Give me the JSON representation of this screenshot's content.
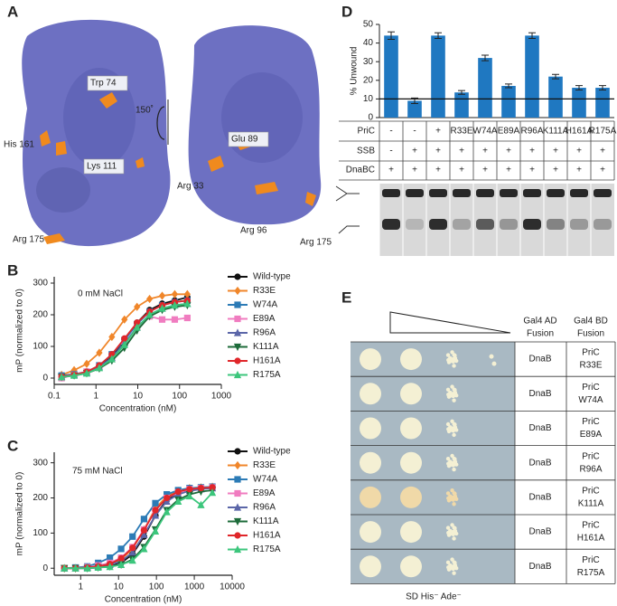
{
  "chart_data": [
    {
      "type": "line",
      "panel": "B",
      "annotation": "0 mM NaCl",
      "xlabel": "Concentration (nM)",
      "ylabel": "mP (normalized to 0)",
      "xscale": "log",
      "xlim": [
        0.1,
        1000
      ],
      "xticks": [
        0.1,
        1,
        10,
        100,
        1000
      ],
      "ylim": [
        -20,
        320
      ],
      "yticks": [
        0,
        100,
        200,
        300
      ],
      "x": [
        0.15,
        0.3,
        0.6,
        1.2,
        2.4,
        4.8,
        9.6,
        19.2,
        38.4,
        76.8,
        153.6
      ],
      "series": [
        {
          "name": "Wild-type",
          "color": "#111111",
          "marker": "circle",
          "values": [
            5,
            8,
            18,
            35,
            70,
            120,
            175,
            215,
            235,
            245,
            255
          ]
        },
        {
          "name": "R33E",
          "color": "#f0862a",
          "marker": "diamond",
          "values": [
            10,
            25,
            45,
            80,
            130,
            185,
            225,
            250,
            260,
            265,
            265
          ]
        },
        {
          "name": "W74A",
          "color": "#2c7bb6",
          "marker": "square",
          "values": [
            8,
            12,
            20,
            40,
            75,
            120,
            170,
            210,
            230,
            240,
            245
          ]
        },
        {
          "name": "E89A",
          "color": "#f07cc0",
          "marker": "square",
          "values": [
            0,
            10,
            20,
            35,
            60,
            110,
            160,
            195,
            185,
            185,
            190
          ]
        },
        {
          "name": "R96A",
          "color": "#5b66a8",
          "marker": "triangle",
          "values": [
            5,
            10,
            18,
            35,
            65,
            110,
            160,
            200,
            220,
            230,
            235
          ]
        },
        {
          "name": "K111A",
          "color": "#1d6b3a",
          "marker": "triangle-down",
          "values": [
            3,
            8,
            15,
            30,
            55,
            95,
            150,
            195,
            215,
            225,
            230
          ]
        },
        {
          "name": "H161A",
          "color": "#e0262a",
          "marker": "circle",
          "values": [
            5,
            10,
            20,
            40,
            75,
            125,
            175,
            210,
            230,
            240,
            245
          ]
        },
        {
          "name": "R175A",
          "color": "#3cc67c",
          "marker": "triangle",
          "values": [
            3,
            8,
            15,
            32,
            60,
            105,
            160,
            200,
            220,
            230,
            235
          ]
        }
      ]
    },
    {
      "type": "line",
      "panel": "C",
      "annotation": "75 mM NaCl",
      "xlabel": "Concentration (nM)",
      "ylabel": "mP (normalized to 0)",
      "xscale": "log",
      "xlim": [
        0.2,
        10000
      ],
      "xticks": [
        1,
        10,
        100,
        1000,
        10000
      ],
      "ylim": [
        -20,
        330
      ],
      "yticks": [
        0,
        100,
        200,
        300
      ],
      "x": [
        0.37,
        0.73,
        1.5,
        2.9,
        5.9,
        11.7,
        23.4,
        47,
        94,
        188,
        375,
        750,
        1500,
        3000
      ],
      "series": [
        {
          "name": "Wild-type",
          "color": "#111111",
          "marker": "circle",
          "values": [
            0,
            0,
            0,
            2,
            5,
            15,
            40,
            90,
            150,
            195,
            215,
            225,
            228,
            230
          ]
        },
        {
          "name": "R33E",
          "color": "#f0862a",
          "marker": "diamond",
          "values": [
            0,
            0,
            2,
            5,
            10,
            25,
            55,
            110,
            170,
            205,
            220,
            228,
            230,
            232
          ]
        },
        {
          "name": "W74A",
          "color": "#2c7bb6",
          "marker": "square",
          "values": [
            0,
            2,
            5,
            15,
            30,
            55,
            90,
            140,
            185,
            210,
            222,
            228,
            230,
            232
          ]
        },
        {
          "name": "E89A",
          "color": "#f07cc0",
          "marker": "square",
          "values": [
            0,
            0,
            3,
            8,
            15,
            30,
            60,
            110,
            165,
            200,
            215,
            225,
            228,
            230
          ]
        },
        {
          "name": "R96A",
          "color": "#5b66a8",
          "marker": "triangle",
          "values": [
            0,
            0,
            2,
            5,
            10,
            20,
            45,
            95,
            150,
            190,
            210,
            220,
            225,
            228
          ]
        },
        {
          "name": "K111A",
          "color": "#1d6b3a",
          "marker": "triangle-down",
          "values": [
            0,
            0,
            0,
            2,
            5,
            10,
            25,
            60,
            110,
            165,
            195,
            210,
            218,
            222
          ]
        },
        {
          "name": "H161A",
          "color": "#e0262a",
          "marker": "circle",
          "values": [
            0,
            0,
            2,
            5,
            12,
            28,
            58,
            108,
            165,
            200,
            218,
            225,
            228,
            230
          ]
        },
        {
          "name": "R175A",
          "color": "#3cc67c",
          "marker": "triangle",
          "values": [
            0,
            0,
            0,
            2,
            4,
            10,
            22,
            55,
            105,
            160,
            190,
            205,
            180,
            215
          ]
        }
      ]
    },
    {
      "type": "bar",
      "panel": "D",
      "ylabel": "% Unwound",
      "color": "#1f78c1",
      "ylim": [
        0,
        50
      ],
      "yticks": [
        0,
        10,
        20,
        30,
        40,
        50
      ],
      "reference_line": 10,
      "row_labels": [
        "PriC",
        "SSB",
        "DnaBC"
      ],
      "categories": [
        "-",
        "-",
        "+",
        "R33E",
        "W74A",
        "E89A",
        "R96A",
        "K111A",
        "H161A",
        "R175A"
      ],
      "rows": [
        [
          "-",
          "+",
          "+",
          "+",
          "+",
          "+",
          "+",
          "+",
          "+",
          "+"
        ],
        [
          "+",
          "+",
          "+",
          "+",
          "+",
          "+",
          "+",
          "+",
          "+",
          "+"
        ]
      ],
      "values": [
        44,
        9,
        44,
        13.5,
        32,
        17,
        44,
        22,
        16,
        16
      ],
      "errors": [
        2,
        1.5,
        1.5,
        1,
        1.5,
        1,
        1.5,
        1.2,
        1.2,
        1.2
      ]
    }
  ],
  "panel_a": {
    "panel": "A",
    "labels": [
      "Trp 74",
      "His 161",
      "Lys 111",
      "Arg 175",
      "150˚",
      "Glu 89",
      "Arg 33",
      "Arg 96",
      "Arg 175"
    ]
  },
  "panel_e": {
    "panel": "E",
    "headers": [
      [
        "Gal4 AD",
        "Fusion"
      ],
      [
        "Gal4 BD",
        "Fusion"
      ]
    ],
    "rows": [
      {
        "ad": "DnaB",
        "bd": [
          "PriC",
          "R33E"
        ]
      },
      {
        "ad": "DnaB",
        "bd": [
          "PriC",
          "W74A"
        ]
      },
      {
        "ad": "DnaB",
        "bd": [
          "PriC",
          "E89A"
        ]
      },
      {
        "ad": "DnaB",
        "bd": [
          "PriC",
          "R96A"
        ]
      },
      {
        "ad": "DnaB",
        "bd": [
          "PriC",
          "K111A"
        ]
      },
      {
        "ad": "DnaB",
        "bd": [
          "PriC",
          "H161A"
        ]
      },
      {
        "ad": "DnaB",
        "bd": [
          "PriC",
          "R175A"
        ]
      }
    ],
    "footer": "SD His⁻ Ade⁻"
  }
}
